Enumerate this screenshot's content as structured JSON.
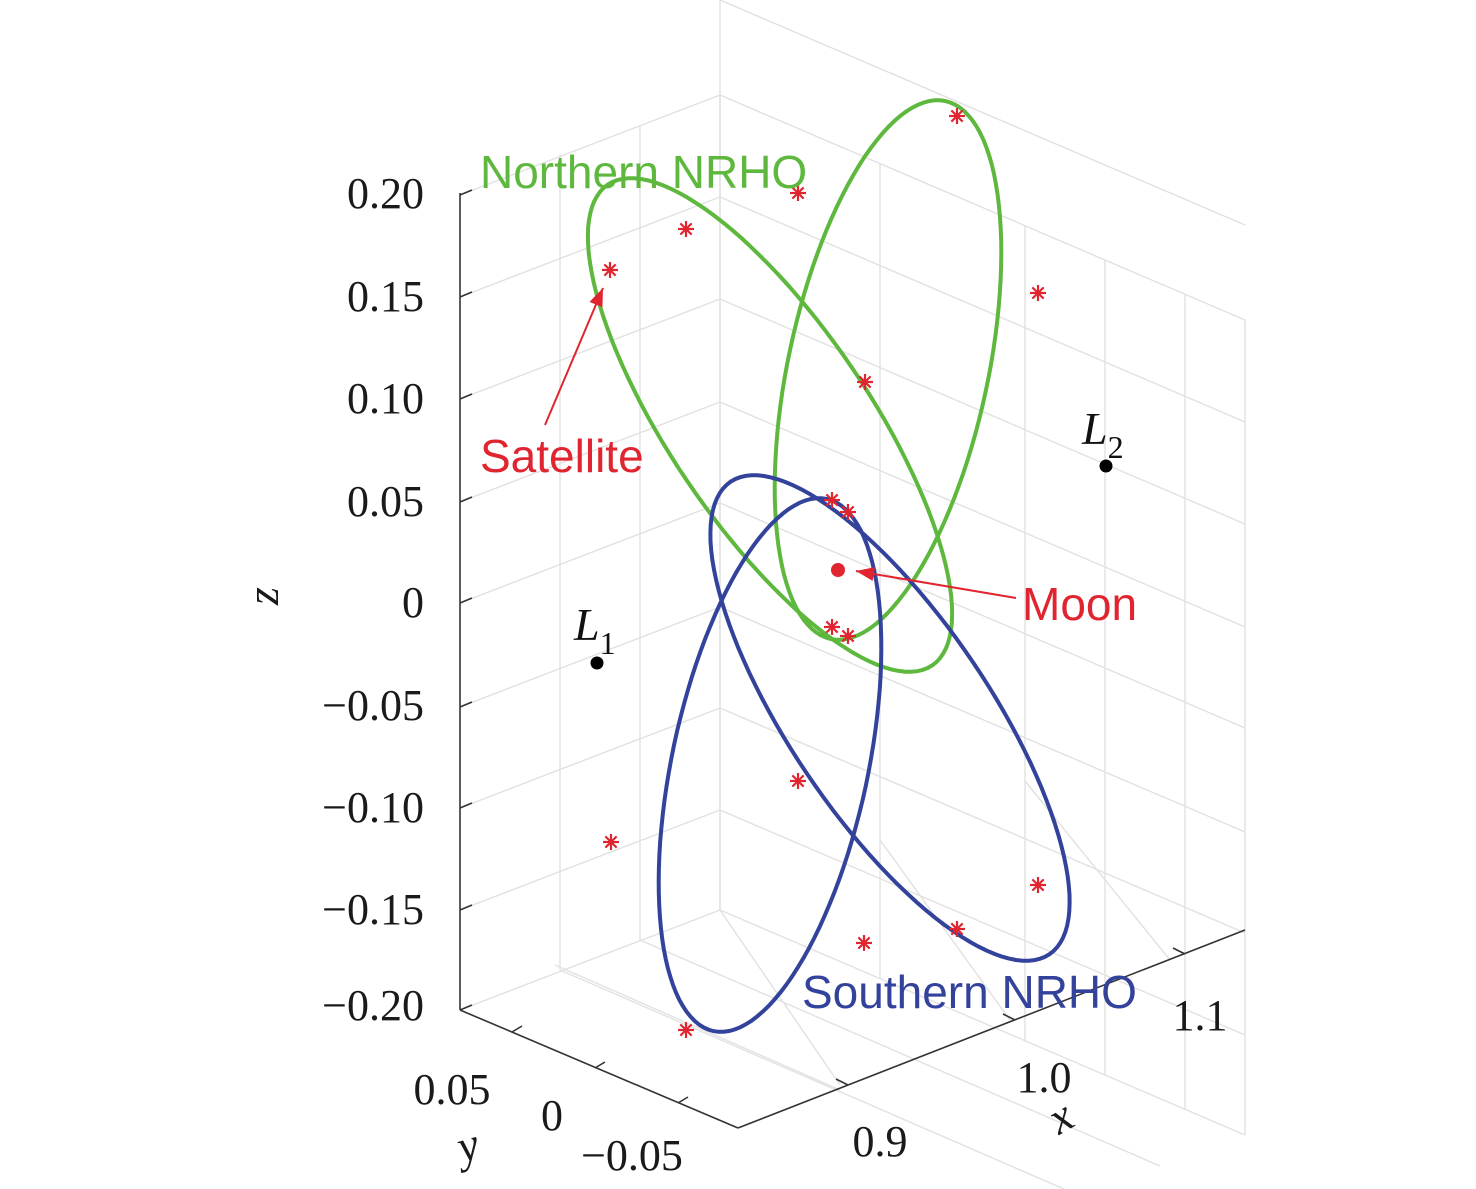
{
  "chart_data": {
    "type": "3d-line",
    "title": "",
    "xlabel": "x",
    "ylabel": "y",
    "zlabel": "z",
    "xlim": [
      0.85,
      1.15
    ],
    "ylim": [
      -0.075,
      0.075
    ],
    "zlim": [
      -0.2,
      0.2
    ],
    "x_ticks": [
      "0.9",
      "1.0",
      "1.1"
    ],
    "y_ticks": [
      "0.05",
      "0",
      "−0.05"
    ],
    "z_ticks": [
      "0.20",
      "0.15",
      "0.10",
      "0.05",
      "0",
      "−0.05",
      "−0.10",
      "−0.15",
      "−0.20"
    ],
    "grid": true,
    "series": [
      {
        "name": "Northern NRHO",
        "color": "#5db83d",
        "label": "Northern NRHO"
      },
      {
        "name": "Southern NRHO",
        "color": "#33429a",
        "label": "Southern NRHO"
      }
    ],
    "points": [
      {
        "key": "L1",
        "letter": "L",
        "sub": "1",
        "color": "#000000"
      },
      {
        "key": "L2",
        "letter": "L",
        "sub": "2",
        "color": "#000000"
      },
      {
        "key": "moon",
        "label": "Moon",
        "color": "#e02530"
      }
    ],
    "annotations": {
      "satellite": "Satellite",
      "moon": "Moon"
    },
    "satellite_marker_color": "#e02530"
  }
}
